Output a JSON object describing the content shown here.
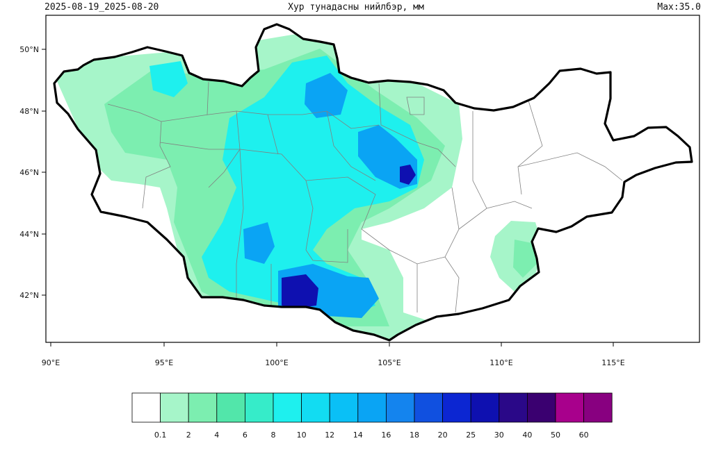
{
  "header": {
    "date_range": "2025-08-19_2025-08-20",
    "title": "Хур тунадасны нийлбэр, мм",
    "max_label": "Max:35.0"
  },
  "axes": {
    "lon_labels": [
      "90°E",
      "95°E",
      "100°E",
      "105°E",
      "110°E",
      "115°E"
    ],
    "lat_labels": [
      "50°N",
      "48°N",
      "46°N",
      "44°N",
      "42°N"
    ]
  },
  "colorbar": {
    "labels": [
      "0.1",
      "2",
      "4",
      "6",
      "8",
      "10",
      "12",
      "14",
      "16",
      "18",
      "20",
      "25",
      "30",
      "40",
      "50",
      "60"
    ],
    "colors": [
      "#ffffff",
      "#a6f5c9",
      "#7ceeb0",
      "#52e6aa",
      "#36ecc9",
      "#1ef0ee",
      "#12dcf2",
      "#0ac0f6",
      "#0aa4f4",
      "#1484ee",
      "#1050e0",
      "#0c26d2",
      "#0e10b0",
      "#2a0888",
      "#3a0070",
      "#a8008c",
      "#880080"
    ]
  },
  "map": {
    "colors": {
      "border": "#000000",
      "aimag_lines": "#808080",
      "no_precip": "#ffffff",
      "light": "#a6f5c9",
      "mid": "#7ceeb0",
      "cyan": "#1ef0ee",
      "blue": "#0aa4f4",
      "deep": "#0e10b0"
    }
  }
}
